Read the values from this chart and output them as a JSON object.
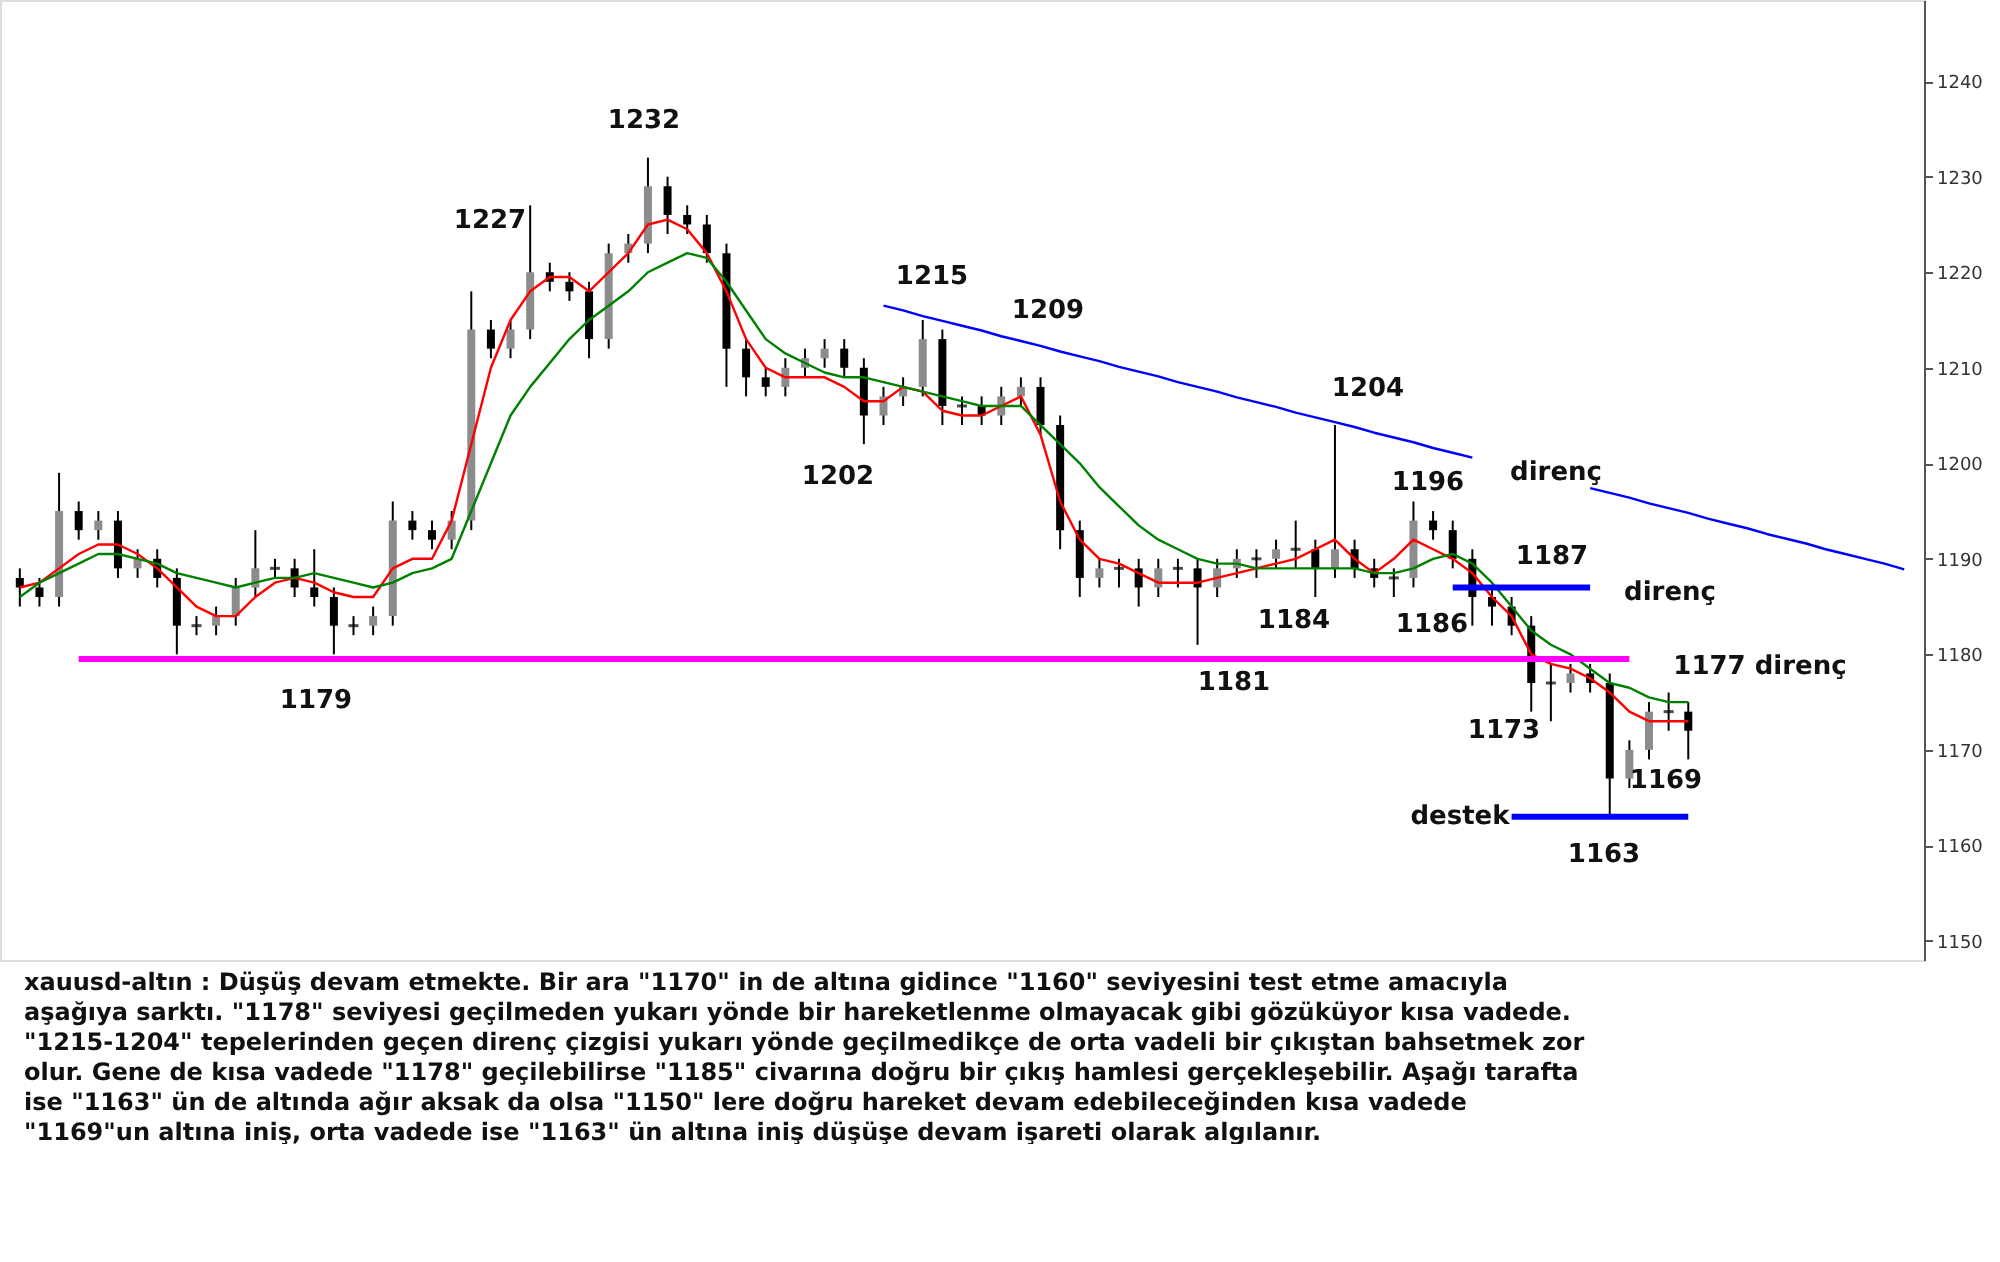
{
  "chart_data": {
    "type": "candlestick",
    "categories": [
      null,
      null,
      null,
      null,
      null,
      null,
      null,
      null,
      null,
      null,
      null,
      null,
      null,
      null,
      null,
      null,
      null,
      null,
      null,
      null,
      null,
      null,
      null,
      null,
      null,
      null,
      null,
      null,
      null,
      null,
      null,
      null,
      null,
      null,
      null,
      null,
      null,
      null,
      null,
      null,
      null,
      null,
      null,
      null,
      null,
      null,
      null,
      null,
      null,
      null,
      null,
      null,
      null,
      null,
      null,
      null,
      null,
      null,
      null,
      null,
      null,
      null,
      null,
      null,
      null,
      null,
      null,
      null,
      null,
      null,
      null,
      null,
      null,
      null,
      null,
      null,
      null,
      null,
      null,
      null,
      null,
      null,
      null,
      null,
      null,
      null,
      null,
      null,
      null,
      null,
      null,
      null,
      null,
      null,
      null,
      null,
      null
    ],
    "ohlc": [
      [
        1188,
        1189,
        1185,
        1187
      ],
      [
        1187,
        1188,
        1185,
        1186
      ],
      [
        1186,
        1199,
        1185,
        1195
      ],
      [
        1195,
        1196,
        1192,
        1193
      ],
      [
        1193,
        1195,
        1192,
        1194
      ],
      [
        1194,
        1195,
        1188,
        1189
      ],
      [
        1189,
        1191,
        1188,
        1190
      ],
      [
        1190,
        1191,
        1187,
        1188
      ],
      [
        1188,
        1189,
        1180,
        1183
      ],
      [
        1183,
        1184,
        1182,
        1183
      ],
      [
        1183,
        1185,
        1182,
        1184
      ],
      [
        1184,
        1188,
        1183,
        1187
      ],
      [
        1187,
        1193,
        1186,
        1189
      ],
      [
        1189,
        1190,
        1188,
        1189
      ],
      [
        1189,
        1190,
        1186,
        1187
      ],
      [
        1187,
        1191,
        1185,
        1186
      ],
      [
        1186,
        1187,
        1180,
        1183
      ],
      [
        1183,
        1184,
        1182,
        1183
      ],
      [
        1183,
        1185,
        1182,
        1184
      ],
      [
        1184,
        1196,
        1183,
        1194
      ],
      [
        1194,
        1195,
        1192,
        1193
      ],
      [
        1193,
        1194,
        1191,
        1192
      ],
      [
        1192,
        1195,
        1191,
        1194
      ],
      [
        1194,
        1218,
        1193,
        1214
      ],
      [
        1214,
        1215,
        1211,
        1212
      ],
      [
        1212,
        1215,
        1211,
        1214
      ],
      [
        1214,
        1227,
        1213,
        1220
      ],
      [
        1220,
        1221,
        1218,
        1219
      ],
      [
        1219,
        1220,
        1217,
        1218
      ],
      [
        1218,
        1219,
        1211,
        1213
      ],
      [
        1213,
        1223,
        1212,
        1222
      ],
      [
        1222,
        1224,
        1221,
        1223
      ],
      [
        1223,
        1232,
        1222,
        1229
      ],
      [
        1229,
        1230,
        1224,
        1226
      ],
      [
        1226,
        1227,
        1224,
        1225
      ],
      [
        1225,
        1226,
        1221,
        1222
      ],
      [
        1222,
        1223,
        1208,
        1212
      ],
      [
        1212,
        1213,
        1207,
        1209
      ],
      [
        1209,
        1210,
        1207,
        1208
      ],
      [
        1208,
        1211,
        1207,
        1210
      ],
      [
        1210,
        1212,
        1209,
        1211
      ],
      [
        1211,
        1213,
        1210,
        1212
      ],
      [
        1212,
        1213,
        1209,
        1210
      ],
      [
        1210,
        1211,
        1202,
        1205
      ],
      [
        1205,
        1208,
        1204,
        1207
      ],
      [
        1207,
        1209,
        1206,
        1208
      ],
      [
        1208,
        1215,
        1207,
        1213
      ],
      [
        1213,
        1214,
        1204,
        1206
      ],
      [
        1206,
        1207,
        1204,
        1206
      ],
      [
        1206,
        1207,
        1204,
        1205
      ],
      [
        1205,
        1208,
        1204,
        1207
      ],
      [
        1207,
        1209,
        1206,
        1208
      ],
      [
        1208,
        1209,
        1203,
        1204
      ],
      [
        1204,
        1205,
        1191,
        1193
      ],
      [
        1193,
        1194,
        1186,
        1188
      ],
      [
        1188,
        1190,
        1187,
        1189
      ],
      [
        1189,
        1190,
        1187,
        1189
      ],
      [
        1189,
        1190,
        1185,
        1187
      ],
      [
        1187,
        1190,
        1186,
        1189
      ],
      [
        1189,
        1190,
        1187,
        1189
      ],
      [
        1189,
        1190,
        1181,
        1187
      ],
      [
        1187,
        1190,
        1186,
        1189
      ],
      [
        1189,
        1191,
        1188,
        1190
      ],
      [
        1190,
        1191,
        1188,
        1190
      ],
      [
        1190,
        1192,
        1189,
        1191
      ],
      [
        1191,
        1194,
        1189,
        1191
      ],
      [
        1191,
        1192,
        1186,
        1189
      ],
      [
        1189,
        1204,
        1188,
        1191
      ],
      [
        1191,
        1192,
        1188,
        1189
      ],
      [
        1189,
        1190,
        1187,
        1188
      ],
      [
        1188,
        1189,
        1186,
        1188
      ],
      [
        1188,
        1196,
        1187,
        1194
      ],
      [
        1194,
        1195,
        1192,
        1193
      ],
      [
        1193,
        1194,
        1189,
        1190
      ],
      [
        1190,
        1191,
        1183,
        1186
      ],
      [
        1186,
        1187,
        1183,
        1185
      ],
      [
        1185,
        1186,
        1182,
        1183
      ],
      [
        1183,
        1184,
        1174,
        1177
      ],
      [
        1177,
        1179,
        1173,
        1177
      ],
      [
        1177,
        1179,
        1176,
        1178
      ],
      [
        1178,
        1179,
        1176,
        1177
      ],
      [
        1177,
        1178,
        1163,
        1167
      ],
      [
        1167,
        1171,
        1166,
        1170
      ],
      [
        1170,
        1175,
        1169,
        1174
      ],
      [
        1174,
        1176,
        1172,
        1174
      ],
      [
        1174,
        1175,
        1169,
        1172
      ],
      null,
      null,
      null,
      null,
      null,
      null,
      null,
      null,
      null,
      null,
      null
    ],
    "series": [
      {
        "type": "line",
        "color": "#ff0000",
        "values": [
          1187,
          1187.5,
          1189,
          1190.5,
          1191.5,
          1191.5,
          1190.5,
          1189,
          1187,
          1185,
          1184,
          1184,
          1186,
          1187.5,
          1188,
          1187.5,
          1186.5,
          1186,
          1186,
          1189,
          1190,
          1190,
          1194,
          1202,
          1210,
          1215,
          1218,
          1219.5,
          1219.5,
          1218,
          1220,
          1222,
          1225,
          1225.5,
          1224.5,
          1222,
          1218,
          1213,
          1210,
          1209,
          1209,
          1209,
          1208,
          1206.5,
          1206.5,
          1208,
          1207.5,
          1205.5,
          1205,
          1205,
          1206,
          1207,
          1203,
          1196,
          1192,
          1190,
          1189.5,
          1188.5,
          1187.5,
          1187.5,
          1187.5,
          1188,
          1188.5,
          1189,
          1189.5,
          1190,
          1191,
          1192,
          1190,
          1188.5,
          1190,
          1192,
          1191,
          1190,
          1188.5,
          1186,
          1184,
          1180,
          1179,
          1178.5,
          1177.5,
          1176,
          1174,
          1173,
          1173,
          1173,
          null,
          null,
          null,
          null,
          null,
          null,
          null,
          null,
          null,
          null,
          null
        ]
      },
      {
        "type": "line",
        "color": "#008000",
        "values": [
          1186,
          1187.5,
          1188.5,
          1189.5,
          1190.5,
          1190.5,
          1190,
          1189.5,
          1188.5,
          1188,
          1187.5,
          1187,
          1187.5,
          1188,
          1188,
          1188.5,
          1188,
          1187.5,
          1187,
          1187.5,
          1188.5,
          1189,
          1190,
          1195,
          1200,
          1205,
          1208,
          1210.5,
          1213,
          1215,
          1216.5,
          1218,
          1220,
          1221,
          1222,
          1221.5,
          1219,
          1216,
          1213,
          1211.5,
          1210.5,
          1209.5,
          1209,
          1209,
          1208.5,
          1208,
          1207.5,
          1207,
          1206.5,
          1206,
          1206,
          1206,
          1204,
          1202,
          1200,
          1197.5,
          1195.5,
          1193.5,
          1192,
          1191,
          1190,
          1189.5,
          1189.5,
          1189,
          1189,
          1189,
          1189,
          1189,
          1189,
          1188.5,
          1188.5,
          1189,
          1190,
          1190.5,
          1189.5,
          1187.5,
          1185,
          1182.5,
          1181,
          1180,
          1178.5,
          1177,
          1176.5,
          1175.5,
          1175,
          1175,
          null,
          null,
          null,
          null,
          null,
          null,
          null,
          null,
          null,
          null,
          null
        ]
      },
      {
        "type": "line",
        "color": "#ff00ff",
        "values": [
          null,
          null,
          null,
          1179.5,
          1179.5,
          1179.5,
          1179.5,
          1179.5,
          1179.5,
          1179.5,
          1179.5,
          1179.5,
          1179.5,
          1179.5,
          1179.5,
          1179.5,
          1179.5,
          1179.5,
          1179.5,
          1179.5,
          1179.5,
          1179.5,
          1179.5,
          1179.5,
          1179.5,
          1179.5,
          1179.5,
          1179.5,
          1179.5,
          1179.5,
          1179.5,
          1179.5,
          1179.5,
          1179.5,
          1179.5,
          1179.5,
          1179.5,
          1179.5,
          1179.5,
          1179.5,
          1179.5,
          1179.5,
          1179.5,
          1179.5,
          1179.5,
          1179.5,
          1179.5,
          1179.5,
          1179.5,
          1179.5,
          1179.5,
          1179.5,
          1179.5,
          1179.5,
          1179.5,
          1179.5,
          1179.5,
          1179.5,
          1179.5,
          1179.5,
          1179.5,
          1179.5,
          1179.5,
          1179.5,
          1179.5,
          1179.5,
          1179.5,
          1179.5,
          1179.5,
          1179.5,
          1179.5,
          1179.5,
          1179.5,
          1179.5,
          1179.5,
          1179.5,
          1179.5,
          1179.5,
          1179.5,
          1179.5,
          1179.5,
          1179.5,
          1179.5,
          null,
          null,
          null,
          null,
          null,
          null,
          null,
          null,
          null,
          null,
          null,
          null,
          null,
          null
        ]
      },
      {
        "type": "line",
        "color": "#0000ff",
        "values": [
          null,
          null,
          null,
          null,
          null,
          null,
          null,
          null,
          null,
          null,
          null,
          null,
          null,
          null,
          null,
          null,
          null,
          null,
          null,
          null,
          null,
          null,
          null,
          null,
          null,
          null,
          null,
          null,
          null,
          null,
          null,
          null,
          null,
          null,
          null,
          null,
          null,
          null,
          null,
          null,
          null,
          null,
          null,
          null,
          1216.5,
          1216,
          1215.4,
          1214.9,
          1214.4,
          1213.9,
          1213.3,
          1212.8,
          1212.3,
          1211.7,
          1211.2,
          1210.7,
          1210.1,
          1209.6,
          1209.1,
          1208.5,
          1208,
          1207.5,
          1206.9,
          1206.4,
          1205.9,
          1205.3,
          1204.8,
          1204.3,
          1203.8,
          1203.2,
          1202.7,
          1202.2,
          1201.6,
          1201.1,
          1200.6,
          null,
          null,
          null,
          null,
          null,
          1197.4,
          1196.9,
          1196.4,
          1195.8,
          1195.3,
          1194.8,
          1194.2,
          1193.7,
          1193.2,
          1192.6,
          1192.1,
          1191.6,
          1191,
          1190.5,
          1190,
          1189.5,
          1188.9
        ]
      },
      {
        "type": "line",
        "color": "#0000ff",
        "values": [
          null,
          null,
          null,
          null,
          null,
          null,
          null,
          null,
          null,
          null,
          null,
          null,
          null,
          null,
          null,
          null,
          null,
          null,
          null,
          null,
          null,
          null,
          null,
          null,
          null,
          null,
          null,
          null,
          null,
          null,
          null,
          null,
          null,
          null,
          null,
          null,
          null,
          null,
          null,
          null,
          null,
          null,
          null,
          null,
          null,
          null,
          null,
          null,
          null,
          null,
          null,
          null,
          null,
          null,
          null,
          null,
          null,
          null,
          null,
          null,
          null,
          null,
          null,
          null,
          null,
          null,
          null,
          null,
          null,
          null,
          null,
          null,
          null,
          1187,
          1187,
          1187,
          1187,
          1187,
          1187,
          1187,
          1187,
          null,
          null,
          null,
          null,
          null,
          null,
          null,
          null,
          null,
          null,
          null,
          null,
          null,
          null,
          null,
          null
        ]
      },
      {
        "type": "line",
        "color": "#0000ff",
        "values": [
          null,
          null,
          null,
          null,
          null,
          null,
          null,
          null,
          null,
          null,
          null,
          null,
          null,
          null,
          null,
          null,
          null,
          null,
          null,
          null,
          null,
          null,
          null,
          null,
          null,
          null,
          null,
          null,
          null,
          null,
          null,
          null,
          null,
          null,
          null,
          null,
          null,
          null,
          null,
          null,
          null,
          null,
          null,
          null,
          null,
          null,
          null,
          null,
          null,
          null,
          null,
          null,
          null,
          null,
          null,
          null,
          null,
          null,
          null,
          null,
          null,
          null,
          null,
          null,
          null,
          null,
          null,
          null,
          null,
          null,
          null,
          null,
          null,
          null,
          null,
          null,
          1163,
          1163,
          1163,
          1163,
          1163,
          1163,
          1163,
          1163,
          1163,
          1163,
          null,
          null,
          null,
          null,
          null,
          null,
          null,
          null,
          null,
          null,
          null
        ]
      }
    ],
    "ylim": [
      1148,
      1248.5
    ],
    "yticks": [
      1150,
      1160,
      1170,
      1180,
      1190,
      1200,
      1210,
      1220,
      1230,
      1240
    ],
    "tick_labels": "y",
    "grid": false,
    "line_style": "solid",
    "annotations": [
      "xauusd-altın : Düşüş devam etmekte. Bir ara \"1170\" in de altına gidince \"1160\" seviyesini test etme amacıyla\naşağıya sarktı. \"1178\" seviyesi geçilmeden yukarı yönde bir hareketlenme olmayacak gibi gözüküyor kısa vadede.\n\"1215-1204\" tepelerinden geçen direnç çizgisi yukarı yönde geçilmedikçe de orta vadeli bir çıkıştan bahsetmek zor\nolur. Gene de kısa vadede \"1178\" geçilebilirse \"1185\" civarına doğru bir çıkış hamlesi gerçekleşebilir. Aşağı tarafta\nise \"1163\" ün de altında ağır aksak da olsa \"1150\" lere doğru hareket devam edebileceğinden kısa vadede\n\"1169\"un altına iniş, orta vadede ise \"1163\" ün altına iniş düşüşe devam işareti olarak algılanır.",
      "1232",
      "1227",
      "1215",
      "1209",
      "1202",
      "1204",
      "1196",
      "direnç",
      "1187",
      "direnç",
      "1184",
      "1186",
      "1181",
      "1179",
      "1177 direnç",
      "1173",
      "1169",
      "destek",
      "1163"
    ]
  }
}
